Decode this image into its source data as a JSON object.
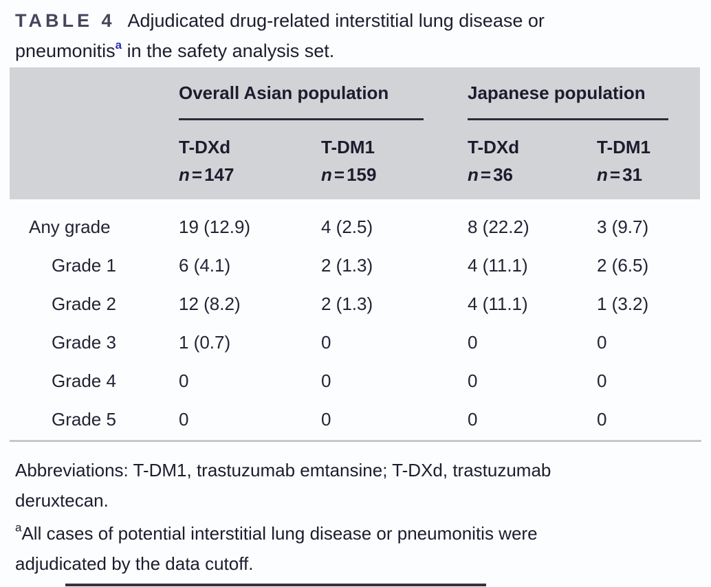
{
  "title": {
    "tag": "TABLE 4",
    "line1": "Adjudicated drug-related interstitial lung disease or",
    "line2_pre": "pneumonitis",
    "sup": "a",
    "line2_post": " in the safety analysis set."
  },
  "table": {
    "col_groups": [
      {
        "label": "Overall Asian population"
      },
      {
        "label": "Japanese population"
      }
    ],
    "columns": [
      {
        "drug": "T-DXd",
        "n_var": "n",
        "n_eq": "=",
        "n_val": "147"
      },
      {
        "drug": "T-DM1",
        "n_var": "n",
        "n_eq": "=",
        "n_val": "159"
      },
      {
        "drug": "T-DXd",
        "n_var": "n",
        "n_eq": "=",
        "n_val": "36"
      },
      {
        "drug": "T-DM1",
        "n_var": "n",
        "n_eq": "=",
        "n_val": "31"
      }
    ],
    "rows": [
      {
        "label": "Any grade",
        "values": [
          "19 (12.9)",
          "4 (2.5)",
          "8 (22.2)",
          "3 (9.7)"
        ]
      },
      {
        "label": "Grade 1",
        "values": [
          "6 (4.1)",
          "2 (1.3)",
          "4 (11.1)",
          "2 (6.5)"
        ]
      },
      {
        "label": "Grade 2",
        "values": [
          "12 (8.2)",
          "2 (1.3)",
          "4 (11.1)",
          "1 (3.2)"
        ]
      },
      {
        "label": "Grade 3",
        "values": [
          "1 (0.7)",
          "0",
          "0",
          "0"
        ]
      },
      {
        "label": "Grade 4",
        "values": [
          "0",
          "0",
          "0",
          "0"
        ]
      },
      {
        "label": "Grade 5",
        "values": [
          "0",
          "0",
          "0",
          "0"
        ]
      }
    ]
  },
  "footnotes": {
    "abbrev_line1": "Abbreviations: T-DM1, trastuzumab emtansine; T-DXd, trastuzumab",
    "abbrev_line2": "deruxtecan.",
    "marker": "a",
    "note_line1": "All cases of potential interstitial lung disease or pneumonitis were",
    "note_line2": "adjudicated by the data cutoff."
  },
  "colors": {
    "page_bg": "#fcfdfe",
    "header_bg": "#d2d3d7",
    "title_color": "#1c1c2e",
    "tag_color": "#45455c",
    "text": "#232336",
    "superscript_blue": "#2e2eb8",
    "dark_rule": "#2b2b36",
    "light_rule": "#c6c7cb",
    "edge_line": "#33333f"
  }
}
